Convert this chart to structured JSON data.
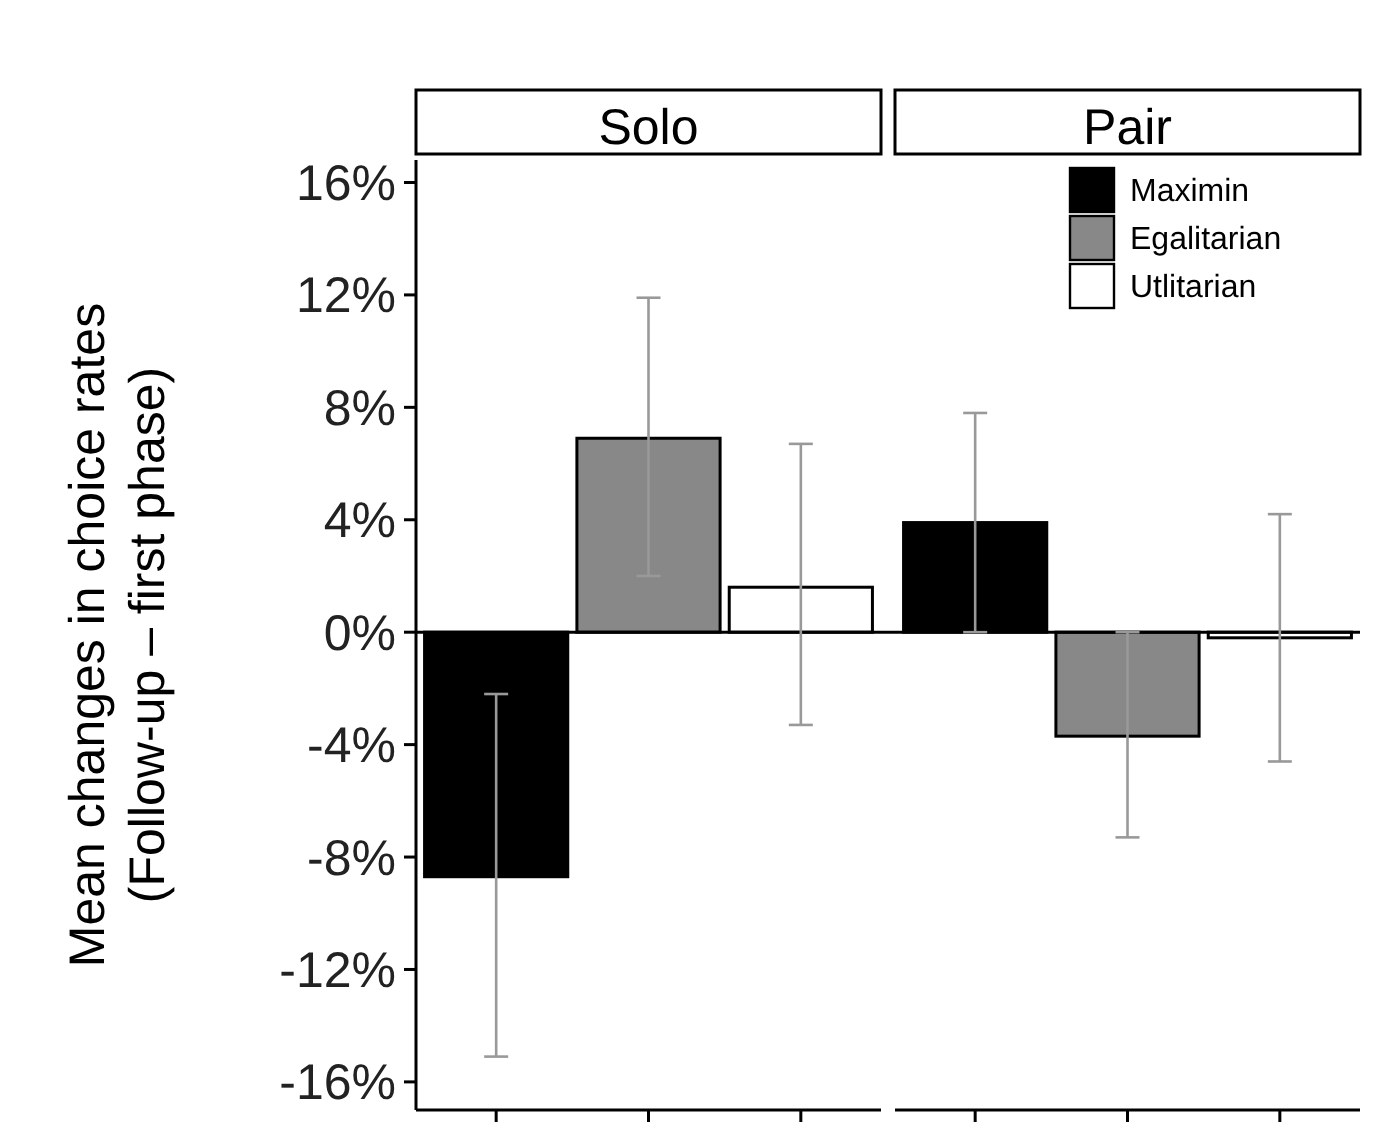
{
  "chart_data": {
    "type": "bar",
    "ylabel": "Mean changes in choice rates\n(Follow-up – first phase)",
    "categories": [
      "Solo",
      "Pair"
    ],
    "ylim": [
      -17,
      16.8
    ],
    "yticks": [
      {
        "value": 16,
        "label": "16%"
      },
      {
        "value": 12,
        "label": "12%"
      },
      {
        "value": 8,
        "label": "8%"
      },
      {
        "value": 4,
        "label": "4%"
      },
      {
        "value": 0,
        "label": "0%"
      },
      {
        "value": -4,
        "label": "-4%"
      },
      {
        "value": -8,
        "label": "-8%"
      },
      {
        "value": -12,
        "label": "-12%"
      },
      {
        "value": -16,
        "label": "-16%"
      }
    ],
    "grid": false,
    "legend": "top right",
    "ref_lines": [
      {
        "axis": "y",
        "value": 0,
        "color": "#000000"
      }
    ],
    "series": [
      {
        "name": "Maximin",
        "color": "#000000",
        "values": [
          -8.7,
          3.9
        ],
        "errors": [
          [
            -15.1,
            -2.2
          ],
          [
            0,
            7.8
          ]
        ]
      },
      {
        "name": "Egalitarian",
        "color": "#888888",
        "values": [
          6.9,
          -3.7
        ],
        "errors": [
          [
            2.0,
            11.9
          ],
          [
            -7.3,
            0
          ]
        ]
      },
      {
        "name": "Utlitarian",
        "color": "#ffffff",
        "values": [
          1.6,
          -0.2
        ],
        "errors": [
          [
            -3.3,
            6.7
          ],
          [
            -4.6,
            4.2
          ]
        ]
      }
    ]
  }
}
